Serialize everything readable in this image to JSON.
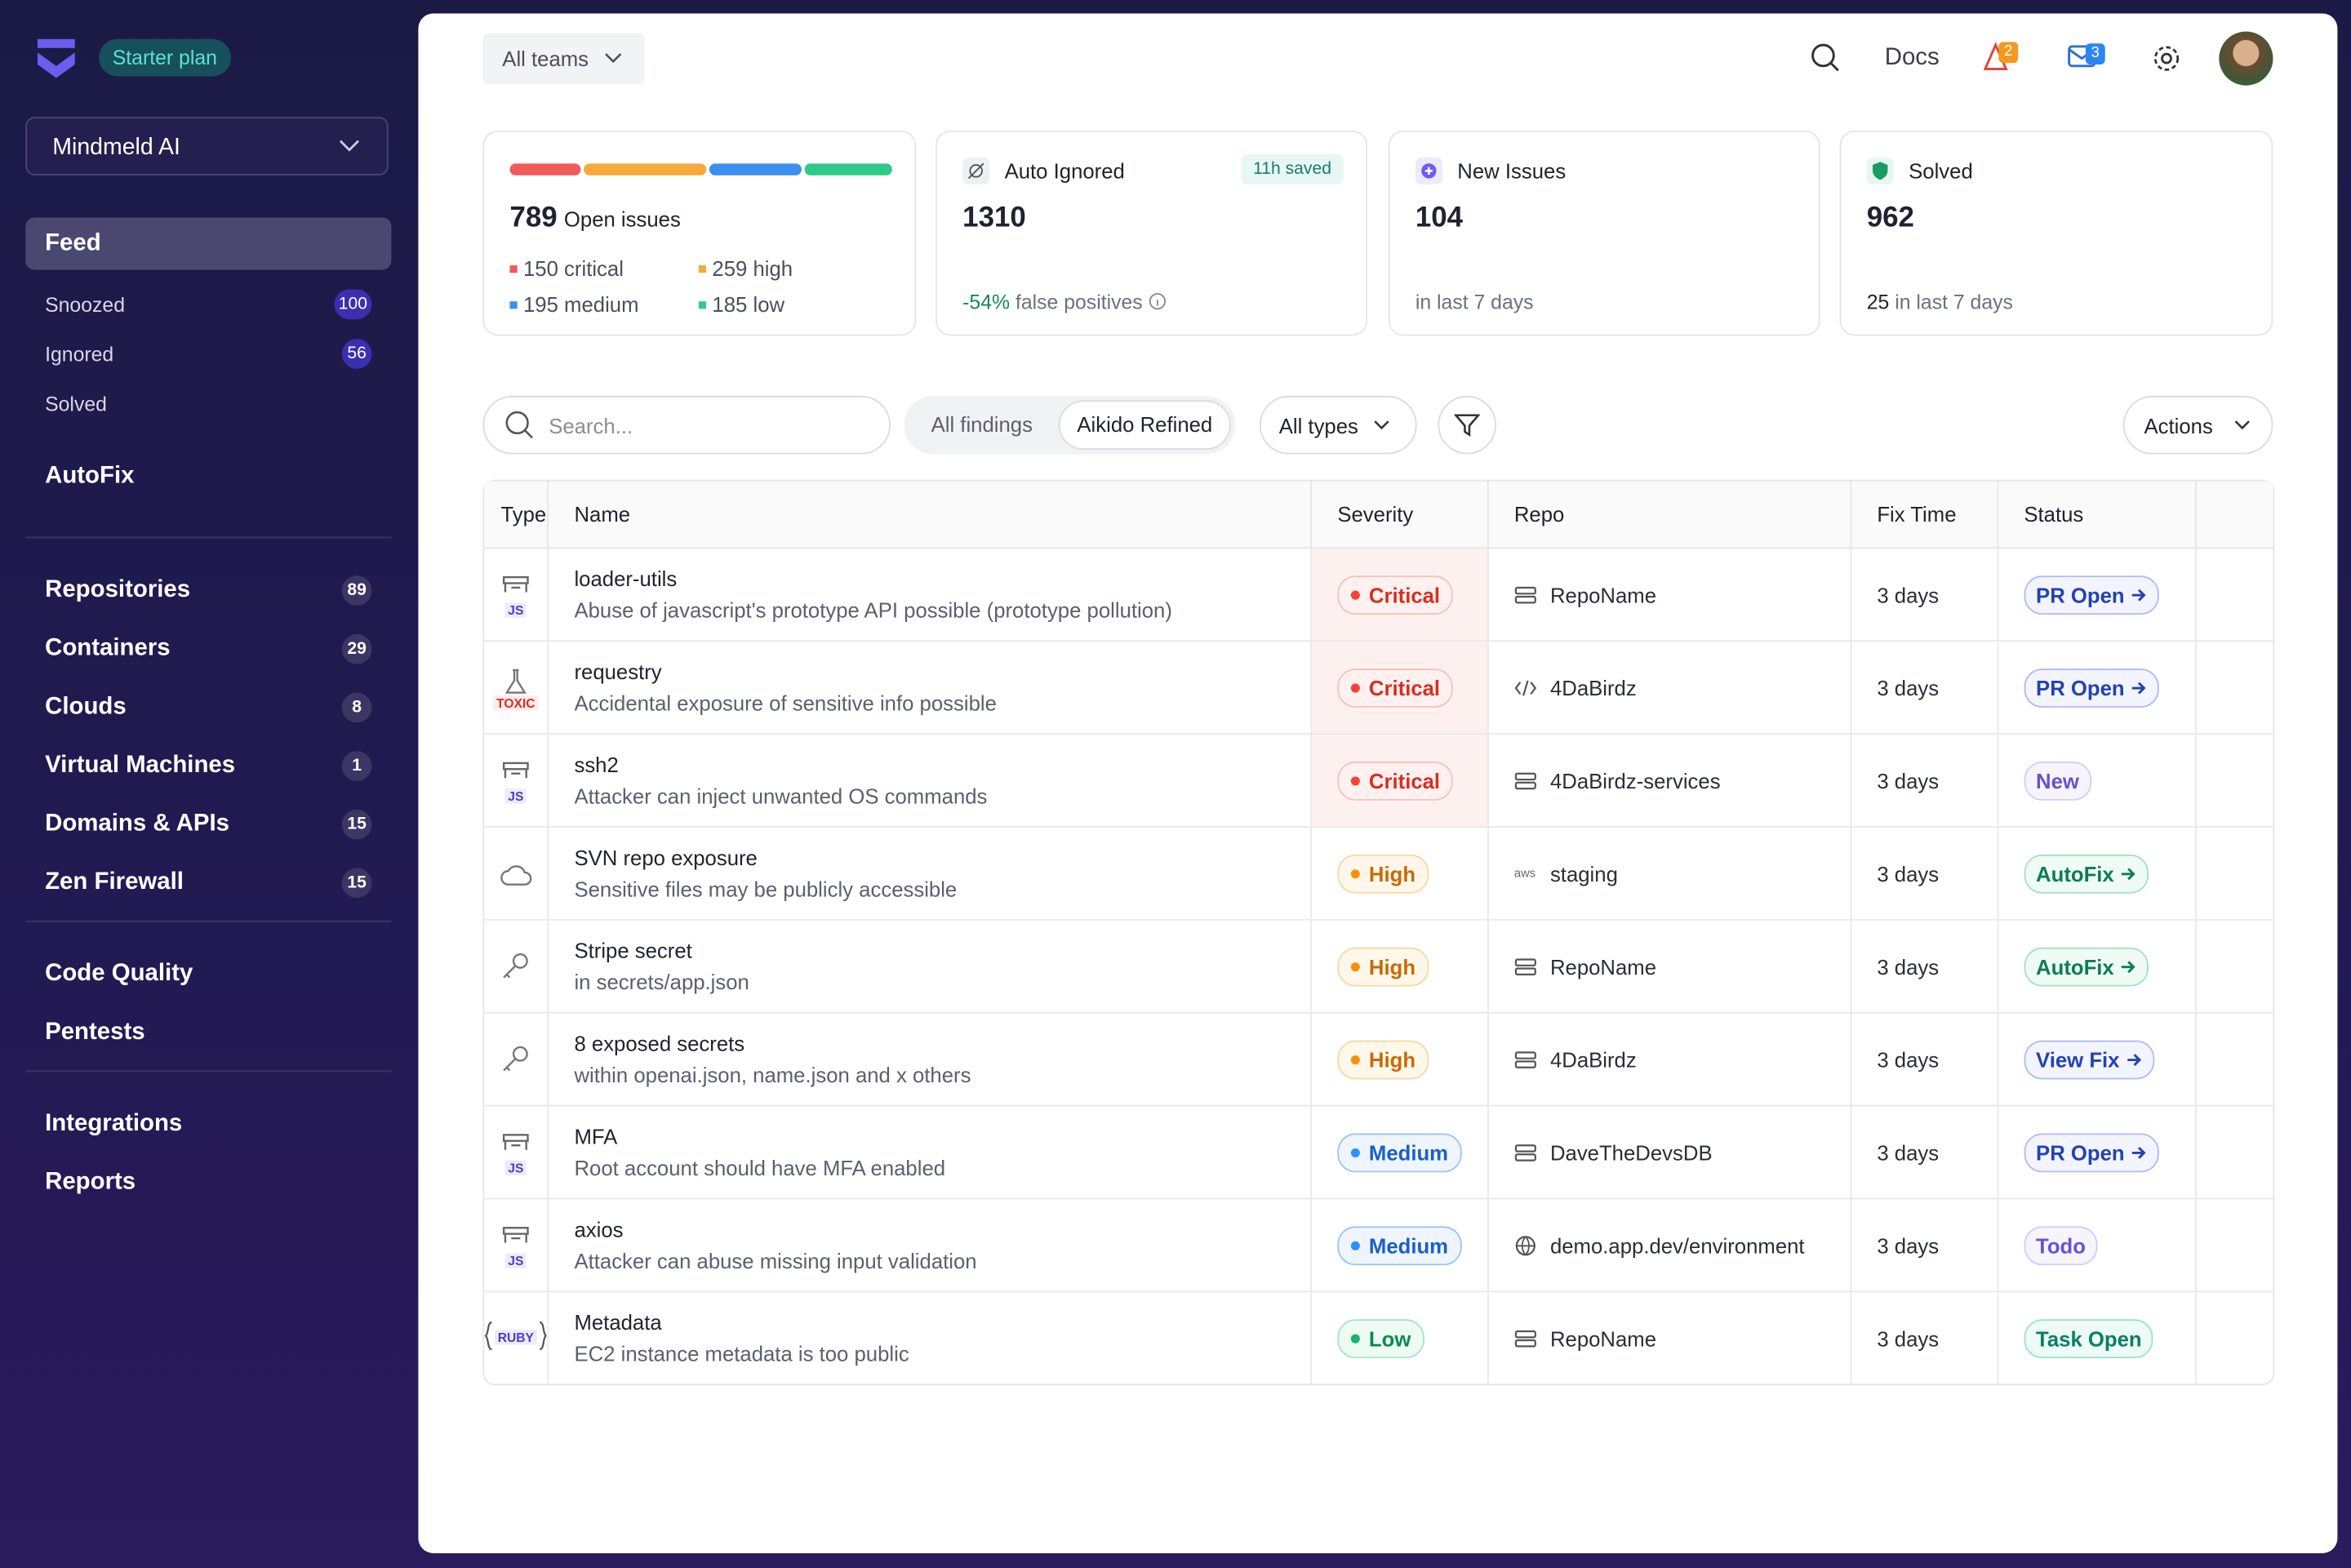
{
  "sidebar": {
    "plan": "Starter plan",
    "workspace": "Mindmeld AI",
    "feed": "Feed",
    "feed_items": [
      {
        "label": "Snoozed",
        "count": "100"
      },
      {
        "label": "Ignored",
        "count": "56"
      },
      {
        "label": "Solved"
      }
    ],
    "autofix": "AutoFix",
    "groups": [
      [
        {
          "label": "Repositories",
          "count": "89"
        },
        {
          "label": "Containers",
          "count": "29"
        },
        {
          "label": "Clouds",
          "count": "8"
        },
        {
          "label": "Virtual Machines",
          "count": "1"
        },
        {
          "label": "Domains & APIs",
          "count": "15"
        },
        {
          "label": "Zen Firewall",
          "count": "15"
        }
      ],
      [
        {
          "label": "Code Quality"
        },
        {
          "label": "Pentests"
        }
      ],
      [
        {
          "label": "Integrations"
        },
        {
          "label": "Reports"
        }
      ]
    ]
  },
  "header": {
    "team": "All teams",
    "docs": "Docs",
    "alerts": "2",
    "messages": "3"
  },
  "stats": {
    "open": {
      "total": "789",
      "label": "Open issues",
      "levels": [
        {
          "count": 150,
          "label": "critical",
          "color": "#f05b5b"
        },
        {
          "count": 259,
          "label": "high",
          "color": "#f7a93b"
        },
        {
          "count": 195,
          "label": "medium",
          "color": "#3b8ff0"
        },
        {
          "count": 185,
          "label": "low",
          "color": "#2fc98a"
        }
      ]
    },
    "ignored": {
      "title": "Auto Ignored",
      "badge": "11h saved",
      "value": "1310",
      "delta": "-54%",
      "note": "false positives"
    },
    "new": {
      "title": "New Issues",
      "value": "104",
      "note": "in last 7 days"
    },
    "solved": {
      "title": "Solved",
      "value": "962",
      "count": "25",
      "note": "in last 7 days"
    }
  },
  "toolbar": {
    "search": "Search...",
    "tabs": [
      "All findings",
      "Aikido Refined"
    ],
    "types": "All types",
    "actions": "Actions"
  },
  "table": {
    "columns": [
      "Type",
      "Name",
      "Severity",
      "Repo",
      "Fix Time",
      "Status"
    ],
    "rows": [
      {
        "icon": "package",
        "tag": "JS",
        "name": "loader-utils",
        "desc": "Abuse of javascript's prototype API possible (prototype pollution)",
        "severity": "Critical",
        "repo_icon": "server",
        "repo": "RepoName",
        "fix": "3 days",
        "status": "PR Open",
        "status_style": "blue",
        "arrow": true
      },
      {
        "icon": "flask",
        "tag": "TOXIC",
        "name": "requestry",
        "desc": "Accidental exposure of sensitive info possible",
        "severity": "Critical",
        "repo_icon": "code",
        "repo": "4DaBirdz",
        "fix": "3 days",
        "status": "PR Open",
        "status_style": "blue",
        "arrow": true
      },
      {
        "icon": "package",
        "tag": "JS",
        "name": "ssh2",
        "desc": "Attacker can inject unwanted OS commands",
        "severity": "Critical",
        "repo_icon": "server",
        "repo": "4DaBirdz-services",
        "fix": "3 days",
        "status": "New",
        "status_style": "purple",
        "arrow": false
      },
      {
        "icon": "cloud",
        "name": "SVN repo exposure",
        "desc": "Sensitive files may be publicly accessible",
        "severity": "High",
        "repo_icon": "aws",
        "repo_icon_text": "aws",
        "repo": "staging",
        "fix": "3 days",
        "status": "AutoFix",
        "status_style": "green",
        "arrow": true
      },
      {
        "icon": "key",
        "name": "Stripe secret",
        "desc": "in secrets/app.json",
        "severity": "High",
        "repo_icon": "server",
        "repo": "RepoName",
        "fix": "3 days",
        "status": "AutoFix",
        "status_style": "green",
        "arrow": true
      },
      {
        "icon": "key",
        "name": "8 exposed secrets",
        "desc": "within openai.json, name.json and x others",
        "severity": "High",
        "repo_icon": "server",
        "repo": "4DaBirdz",
        "fix": "3 days",
        "status": "View Fix",
        "status_style": "blue",
        "arrow": true
      },
      {
        "icon": "package",
        "tag": "JS",
        "name": "MFA",
        "desc": "Root account should have MFA enabled",
        "severity": "Medium",
        "repo_icon": "server",
        "repo": "DaveTheDevsDB",
        "fix": "3 days",
        "status": "PR Open",
        "status_style": "blue",
        "arrow": true
      },
      {
        "icon": "package",
        "tag": "JS",
        "name": "axios",
        "desc": "Attacker can abuse missing input validation",
        "severity": "Medium",
        "repo_icon": "globe",
        "repo": "demo.app.dev/environment",
        "fix": "3 days",
        "status": "Todo",
        "status_style": "purple",
        "arrow": false
      },
      {
        "icon": "braces",
        "tag": "RUBY",
        "name": "Metadata",
        "desc": "EC2 instance metadata is too public",
        "severity": "Low",
        "repo_icon": "server",
        "repo": "RepoName",
        "fix": "3 days",
        "status": "Task Open",
        "status_style": "teal",
        "arrow": false
      }
    ]
  }
}
